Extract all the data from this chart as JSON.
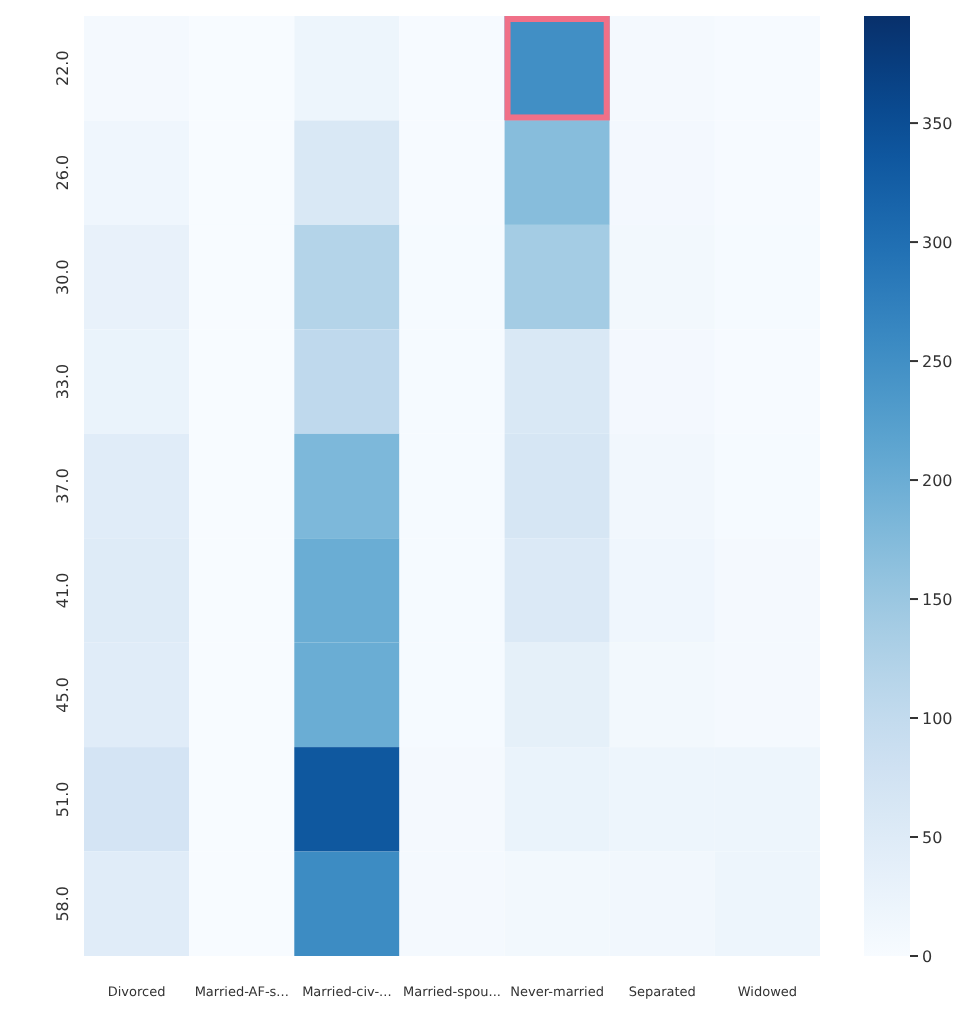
{
  "chart_data": {
    "type": "heatmap",
    "categories": [
      "Divorced",
      "Married-AF-s...",
      "Married-civ-...",
      "Married-spou...",
      "Never-married",
      "Separated",
      "Widowed"
    ],
    "y_categories": [
      "22.0",
      "26.0",
      "30.0",
      "33.0",
      "37.0",
      "41.0",
      "45.0",
      "51.0",
      "58.0"
    ],
    "cells": [
      [
        5,
        0,
        20,
        2,
        250,
        5,
        2
      ],
      [
        15,
        0,
        60,
        2,
        170,
        8,
        2
      ],
      [
        30,
        0,
        120,
        3,
        140,
        10,
        3
      ],
      [
        25,
        0,
        105,
        3,
        60,
        8,
        2
      ],
      [
        45,
        0,
        180,
        3,
        65,
        12,
        3
      ],
      [
        50,
        0,
        200,
        3,
        55,
        15,
        5
      ],
      [
        45,
        0,
        200,
        3,
        35,
        10,
        5
      ],
      [
        70,
        0,
        335,
        5,
        25,
        20,
        20
      ],
      [
        45,
        0,
        255,
        5,
        10,
        12,
        20
      ]
    ],
    "clim": [
      0,
      395
    ],
    "cticks": [
      0,
      50,
      100,
      150,
      200,
      250,
      300,
      350
    ]
  }
}
